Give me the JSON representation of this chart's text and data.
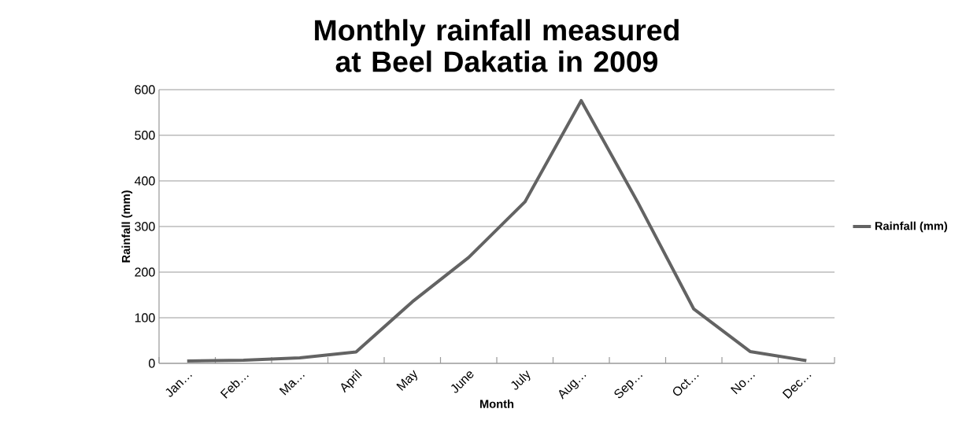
{
  "chart_data": {
    "type": "line",
    "title": "Monthly  rainfall measured at Beel Dakatia in 2009",
    "xlabel": "Month",
    "ylabel": "Rainfall (mm)",
    "categories": [
      "Jan…",
      "Feb…",
      "Ma…",
      "April",
      "May",
      "June",
      "July",
      "Aug…",
      "Sep…",
      "Oct…",
      "No…",
      "Dec…"
    ],
    "series": [
      {
        "name": "Rainfall (mm)",
        "color": "#636363",
        "values": [
          5,
          7,
          12,
          25,
          135,
          232,
          354,
          576,
          354,
          119,
          26,
          6
        ]
      }
    ],
    "ylim": [
      0,
      600
    ],
    "yticks": [
      0,
      100,
      200,
      300,
      400,
      500,
      600
    ],
    "grid": "y",
    "legend": "right",
    "marker": "none",
    "line_style": "solid"
  }
}
